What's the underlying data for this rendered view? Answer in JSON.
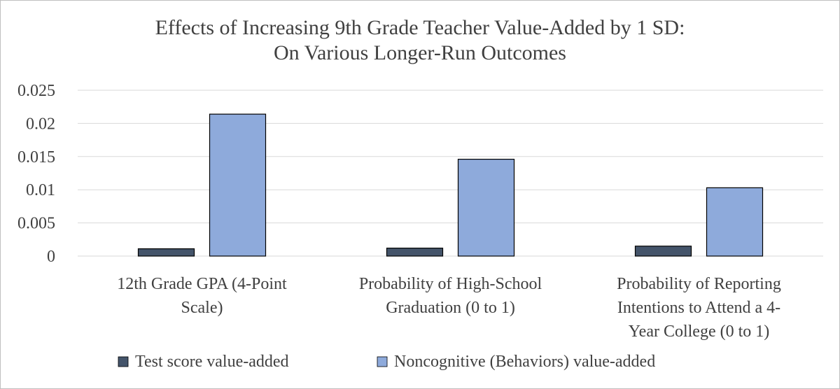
{
  "chart_data": {
    "type": "bar",
    "title": "Effects of Increasing 9th Grade Teacher Value-Added by 1 SD: On Various Longer-Run Outcomes",
    "title_lines": [
      "Effects of Increasing 9th Grade Teacher Value-Added by 1 SD:",
      "On Various Longer-Run Outcomes"
    ],
    "categories": [
      "12th Grade GPA (4-Point Scale)",
      "Probability of High-School Graduation (0 to 1)",
      "Probability of Reporting Intentions to Attend a 4-Year College (0 to 1)"
    ],
    "category_lines": [
      [
        "12th Grade GPA (4-Point",
        "Scale)"
      ],
      [
        "Probability of High-School",
        "Graduation (0 to 1)"
      ],
      [
        "Probability of Reporting",
        "Intentions to Attend a 4-",
        "Year College (0 to 1)"
      ]
    ],
    "series": [
      {
        "name": "Test score value-added",
        "values": [
          0.0011,
          0.0012,
          0.0015
        ],
        "color": "#44546a"
      },
      {
        "name": "Noncognitive (Behaviors) value-added",
        "values": [
          0.0214,
          0.0146,
          0.0103
        ],
        "color": "#8eaadb"
      }
    ],
    "ylim": [
      0,
      0.025
    ],
    "yticks": [
      0,
      0.005,
      0.01,
      0.015,
      0.02,
      0.025
    ],
    "ytick_labels": [
      "0",
      "0.005",
      "0.01",
      "0.015",
      "0.02",
      "0.025"
    ],
    "xlabel": "",
    "ylabel": "",
    "grid": true,
    "legend_position": "bottom",
    "bar_outline_color": "#000000",
    "grid_color": "#d9d9d9",
    "text_color": "#404040"
  }
}
